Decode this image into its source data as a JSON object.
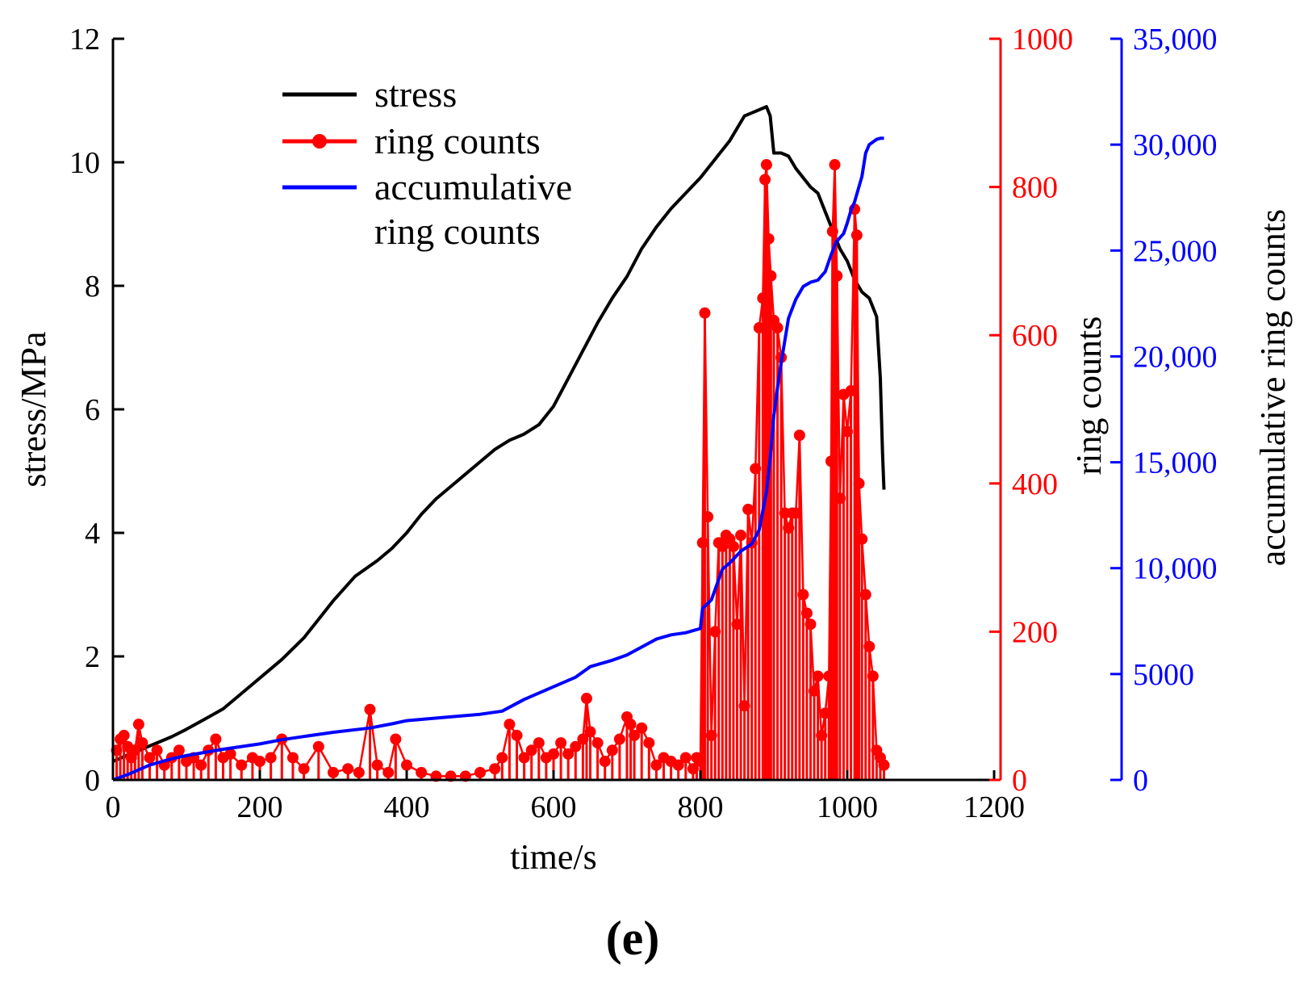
{
  "panel_label": "e",
  "chart_data": {
    "type": "line",
    "title": "",
    "xlabel": "time/s",
    "xlim": [
      0,
      1200
    ],
    "xticks": [
      0,
      200,
      400,
      600,
      800,
      1000,
      1200
    ],
    "grid": false,
    "legend_position": "top-left",
    "axes": {
      "stress": {
        "label": "stress/MPa",
        "side": "left",
        "color": "#000000",
        "ylim": [
          0,
          12
        ],
        "ticks": [
          0,
          2,
          4,
          6,
          8,
          10,
          12
        ],
        "tick_labels": [
          "0",
          "2",
          "4",
          "6",
          "8",
          "10",
          "12"
        ]
      },
      "ring": {
        "label": "ring counts",
        "side": "right",
        "color": "#ff0000",
        "ylim": [
          0,
          1000
        ],
        "ticks": [
          0,
          200,
          400,
          600,
          800,
          1000
        ],
        "tick_labels": [
          "0",
          "200",
          "400",
          "600",
          "800",
          "1000"
        ]
      },
      "accum": {
        "label": "accumulative ring counts",
        "side": "right-outer",
        "color": "#0000ff",
        "ylim": [
          0,
          35000
        ],
        "ticks": [
          0,
          5000,
          10000,
          15000,
          20000,
          25000,
          30000,
          35000
        ],
        "tick_labels": [
          "0",
          "5000",
          "10,000",
          "15,000",
          "20,000",
          "25,000",
          "30,000",
          "35,000"
        ]
      }
    },
    "legend": [
      {
        "label": "stress",
        "series": "stress",
        "marker": false
      },
      {
        "label": "ring counts",
        "series": "ring",
        "marker": true
      },
      {
        "label": "accumulative",
        "label2": "ring counts",
        "series": "accum",
        "marker": false
      }
    ],
    "series": [
      {
        "name": "stress",
        "axis": "stress",
        "color": "#000000",
        "style": "line",
        "x": [
          0,
          10,
          20,
          30,
          40,
          50,
          60,
          80,
          100,
          120,
          150,
          180,
          200,
          230,
          260,
          280,
          300,
          330,
          360,
          380,
          400,
          420,
          440,
          460,
          480,
          500,
          520,
          540,
          560,
          580,
          600,
          620,
          640,
          660,
          680,
          700,
          720,
          740,
          760,
          780,
          800,
          820,
          840,
          860,
          870,
          880,
          890,
          895,
          900,
          910,
          920,
          930,
          940,
          950,
          960,
          970,
          980,
          990,
          1000,
          1010,
          1020,
          1030,
          1040,
          1045,
          1048,
          1050
        ],
        "y": [
          0.3,
          0.35,
          0.4,
          0.45,
          0.5,
          0.55,
          0.6,
          0.7,
          0.82,
          0.95,
          1.15,
          1.45,
          1.65,
          1.95,
          2.3,
          2.6,
          2.9,
          3.3,
          3.55,
          3.75,
          4.0,
          4.3,
          4.55,
          4.75,
          4.95,
          5.15,
          5.35,
          5.5,
          5.6,
          5.75,
          6.05,
          6.5,
          6.95,
          7.4,
          7.8,
          8.15,
          8.6,
          8.95,
          9.25,
          9.5,
          9.75,
          10.05,
          10.35,
          10.75,
          10.8,
          10.85,
          10.9,
          10.75,
          10.15,
          10.15,
          10.1,
          9.9,
          9.75,
          9.6,
          9.5,
          9.2,
          8.9,
          8.6,
          8.4,
          8.1,
          7.9,
          7.8,
          7.5,
          6.5,
          5.3,
          4.7
        ]
      },
      {
        "name": "ring counts",
        "axis": "ring",
        "color": "#ff0000",
        "style": "stem-line-markers",
        "x": [
          5,
          10,
          15,
          20,
          25,
          30,
          35,
          40,
          50,
          60,
          70,
          80,
          90,
          100,
          110,
          120,
          130,
          140,
          150,
          160,
          175,
          190,
          200,
          215,
          230,
          245,
          260,
          280,
          300,
          320,
          335,
          350,
          360,
          375,
          385,
          400,
          420,
          440,
          460,
          480,
          500,
          520,
          530,
          540,
          550,
          560,
          570,
          580,
          590,
          600,
          610,
          620,
          630,
          640,
          645,
          650,
          660,
          670,
          680,
          690,
          700,
          705,
          710,
          720,
          730,
          740,
          750,
          760,
          770,
          780,
          790,
          795,
          800,
          803,
          806,
          810,
          815,
          820,
          825,
          830,
          835,
          840,
          845,
          850,
          855,
          860,
          865,
          870,
          875,
          880,
          885,
          888,
          890,
          893,
          896,
          900,
          905,
          910,
          915,
          920,
          925,
          930,
          935,
          940,
          945,
          950,
          955,
          960,
          965,
          970,
          975,
          978,
          980,
          983,
          986,
          990,
          995,
          1000,
          1005,
          1010,
          1013,
          1016,
          1020,
          1025,
          1030,
          1035,
          1040,
          1045,
          1050
        ],
        "y": [
          40,
          55,
          60,
          45,
          30,
          40,
          75,
          50,
          30,
          40,
          20,
          30,
          40,
          25,
          30,
          20,
          40,
          55,
          30,
          35,
          20,
          30,
          25,
          30,
          55,
          30,
          15,
          45,
          10,
          15,
          10,
          95,
          20,
          10,
          55,
          20,
          10,
          5,
          5,
          5,
          10,
          15,
          30,
          75,
          60,
          30,
          40,
          50,
          30,
          35,
          50,
          35,
          45,
          55,
          110,
          65,
          50,
          25,
          40,
          55,
          85,
          75,
          60,
          70,
          50,
          20,
          30,
          25,
          20,
          30,
          15,
          30,
          25,
          320,
          630,
          355,
          60,
          200,
          320,
          315,
          330,
          325,
          315,
          210,
          330,
          100,
          365,
          320,
          420,
          610,
          650,
          810,
          830,
          730,
          680,
          620,
          610,
          570,
          360,
          340,
          360,
          360,
          465,
          250,
          225,
          210,
          120,
          140,
          60,
          90,
          140,
          430,
          740,
          830,
          680,
          380,
          520,
          470,
          525,
          770,
          735,
          400,
          325,
          250,
          180,
          140,
          40,
          30,
          20
        ]
      },
      {
        "name": "accumulative ring counts",
        "axis": "accum",
        "color": "#0000ff",
        "style": "line",
        "x": [
          0,
          20,
          50,
          80,
          100,
          150,
          200,
          230,
          260,
          300,
          350,
          380,
          400,
          450,
          500,
          530,
          560,
          600,
          630,
          650,
          680,
          700,
          740,
          760,
          780,
          800,
          803,
          815,
          830,
          840,
          855,
          870,
          880,
          890,
          895,
          900,
          905,
          910,
          920,
          930,
          940,
          950,
          960,
          970,
          978,
          985,
          990,
          995,
          1000,
          1005,
          1010,
          1020,
          1025,
          1030,
          1040,
          1045,
          1050
        ],
        "y": [
          0,
          250,
          700,
          1000,
          1150,
          1450,
          1700,
          1900,
          2050,
          2250,
          2450,
          2650,
          2800,
          2950,
          3100,
          3250,
          3800,
          4400,
          4850,
          5350,
          5650,
          5900,
          6650,
          6850,
          6950,
          7150,
          8100,
          8500,
          9950,
          10250,
          10800,
          11150,
          11800,
          13600,
          15200,
          17200,
          18500,
          19700,
          21800,
          22700,
          23300,
          23500,
          23600,
          24000,
          24800,
          25400,
          25600,
          25800,
          26300,
          26900,
          27300,
          28500,
          29600,
          30000,
          30250,
          30300,
          30300
        ]
      }
    ]
  }
}
